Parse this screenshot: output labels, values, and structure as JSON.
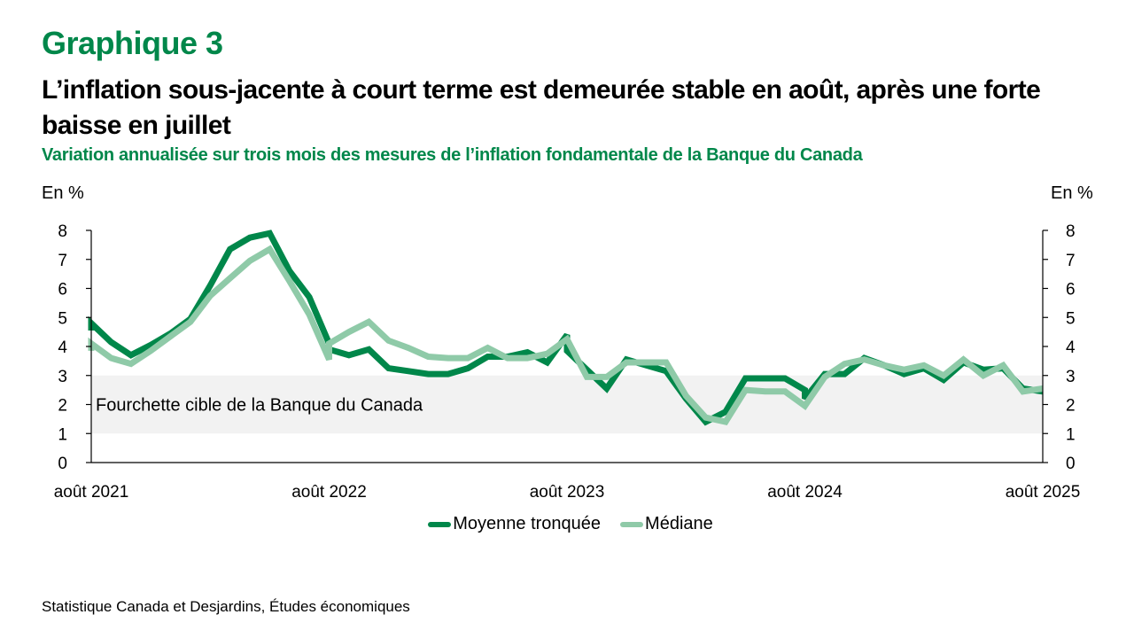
{
  "header": {
    "kicker": "Graphique 3",
    "title": "L’inflation sous-jacente à court terme est demeurée stable en août, après une forte baisse en juillet",
    "subtitle": "Variation annualisée sur trois mois des mesures de l’inflation fondamentale de la Banque du Canada"
  },
  "source": "Statistique Canada et Desjardins, Études économiques",
  "colors": {
    "brand": "#00874a",
    "trimmed_mean": "#00874a",
    "median": "#8fcaa8",
    "target_band": "#f2f2f2"
  },
  "chart_data": {
    "type": "line",
    "title": "L’inflation sous-jacente à court terme est demeurée stable en août, après une forte baisse en juillet",
    "subtitle": "Variation annualisée sur trois mois des mesures de l’inflation fondamentale de la Banque du Canada",
    "ylabel_left": "En %",
    "ylabel_right": "En %",
    "xlabel": "",
    "ylim": [
      0,
      8
    ],
    "yticks": [
      0,
      1,
      2,
      3,
      4,
      5,
      6,
      7,
      8
    ],
    "x_range_months": [
      0,
      48
    ],
    "x_unit": "months since août 2021",
    "xtick_labels": [
      {
        "month": 0,
        "label": "août 2021"
      },
      {
        "month": 12,
        "label": "août 2022"
      },
      {
        "month": 24,
        "label": "août 2023"
      },
      {
        "month": 36,
        "label": "août 2024"
      },
      {
        "month": 48,
        "label": "août 2025"
      }
    ],
    "grid": false,
    "legend_position": "bottom",
    "band": {
      "from": 1,
      "to": 3,
      "label": "Fourchette cible de la Banque du Canada"
    },
    "series": [
      {
        "name": "Moyenne tronquée",
        "color": "#00874a",
        "points": [
          [
            0,
            4.55
          ],
          [
            0,
            4.8
          ],
          [
            1,
            4.15
          ],
          [
            2,
            3.7
          ],
          [
            3,
            4.05
          ],
          [
            4,
            4.45
          ],
          [
            5,
            4.95
          ],
          [
            6,
            6.1
          ],
          [
            7,
            7.35
          ],
          [
            8,
            7.75
          ],
          [
            9,
            7.9
          ],
          [
            10,
            6.6
          ],
          [
            11,
            5.7
          ],
          [
            12,
            4.1
          ],
          [
            12,
            3.9
          ],
          [
            13,
            3.7
          ],
          [
            14,
            3.9
          ],
          [
            15,
            3.25
          ],
          [
            16,
            3.15
          ],
          [
            17,
            3.05
          ],
          [
            18,
            3.05
          ],
          [
            19,
            3.25
          ],
          [
            20,
            3.65
          ],
          [
            21,
            3.65
          ],
          [
            22,
            3.8
          ],
          [
            23,
            3.45
          ],
          [
            24,
            4.4
          ],
          [
            24,
            3.85
          ],
          [
            25,
            3.2
          ],
          [
            26,
            2.55
          ],
          [
            27,
            3.55
          ],
          [
            28,
            3.35
          ],
          [
            29,
            3.15
          ],
          [
            30,
            2.2
          ],
          [
            31,
            1.4
          ],
          [
            32,
            1.75
          ],
          [
            33,
            2.9
          ],
          [
            34,
            2.9
          ],
          [
            35,
            2.9
          ],
          [
            36,
            2.5
          ],
          [
            36,
            2.2
          ],
          [
            37,
            3.05
          ],
          [
            38,
            3.05
          ],
          [
            39,
            3.6
          ],
          [
            40,
            3.35
          ],
          [
            41,
            3.05
          ],
          [
            42,
            3.25
          ],
          [
            43,
            2.85
          ],
          [
            44,
            3.45
          ],
          [
            45,
            3.2
          ],
          [
            46,
            3.25
          ],
          [
            47,
            2.55
          ],
          [
            48,
            2.45
          ]
        ]
      },
      {
        "name": "Médiane",
        "color": "#8fcaa8",
        "points": [
          [
            0,
            3.85
          ],
          [
            0,
            4.1
          ],
          [
            1,
            3.6
          ],
          [
            2,
            3.4
          ],
          [
            3,
            3.85
          ],
          [
            4,
            4.35
          ],
          [
            5,
            4.85
          ],
          [
            6,
            5.75
          ],
          [
            7,
            6.35
          ],
          [
            8,
            6.95
          ],
          [
            9,
            7.35
          ],
          [
            10,
            6.25
          ],
          [
            11,
            5.1
          ],
          [
            12,
            3.55
          ],
          [
            12,
            4.1
          ],
          [
            13,
            4.5
          ],
          [
            14,
            4.85
          ],
          [
            15,
            4.2
          ],
          [
            16,
            3.95
          ],
          [
            17,
            3.65
          ],
          [
            18,
            3.6
          ],
          [
            19,
            3.6
          ],
          [
            20,
            3.95
          ],
          [
            21,
            3.6
          ],
          [
            22,
            3.6
          ],
          [
            23,
            3.75
          ],
          [
            24,
            4.25
          ],
          [
            25,
            2.95
          ],
          [
            26,
            2.95
          ],
          [
            27,
            3.45
          ],
          [
            28,
            3.45
          ],
          [
            29,
            3.45
          ],
          [
            30,
            2.3
          ],
          [
            31,
            1.55
          ],
          [
            32,
            1.4
          ],
          [
            33,
            2.5
          ],
          [
            34,
            2.45
          ],
          [
            35,
            2.45
          ],
          [
            36,
            1.95
          ],
          [
            37,
            2.95
          ],
          [
            38,
            3.4
          ],
          [
            39,
            3.55
          ],
          [
            40,
            3.35
          ],
          [
            41,
            3.2
          ],
          [
            42,
            3.35
          ],
          [
            43,
            3.0
          ],
          [
            44,
            3.55
          ],
          [
            45,
            3.0
          ],
          [
            46,
            3.35
          ],
          [
            47,
            2.45
          ],
          [
            48,
            2.55
          ]
        ]
      }
    ]
  }
}
